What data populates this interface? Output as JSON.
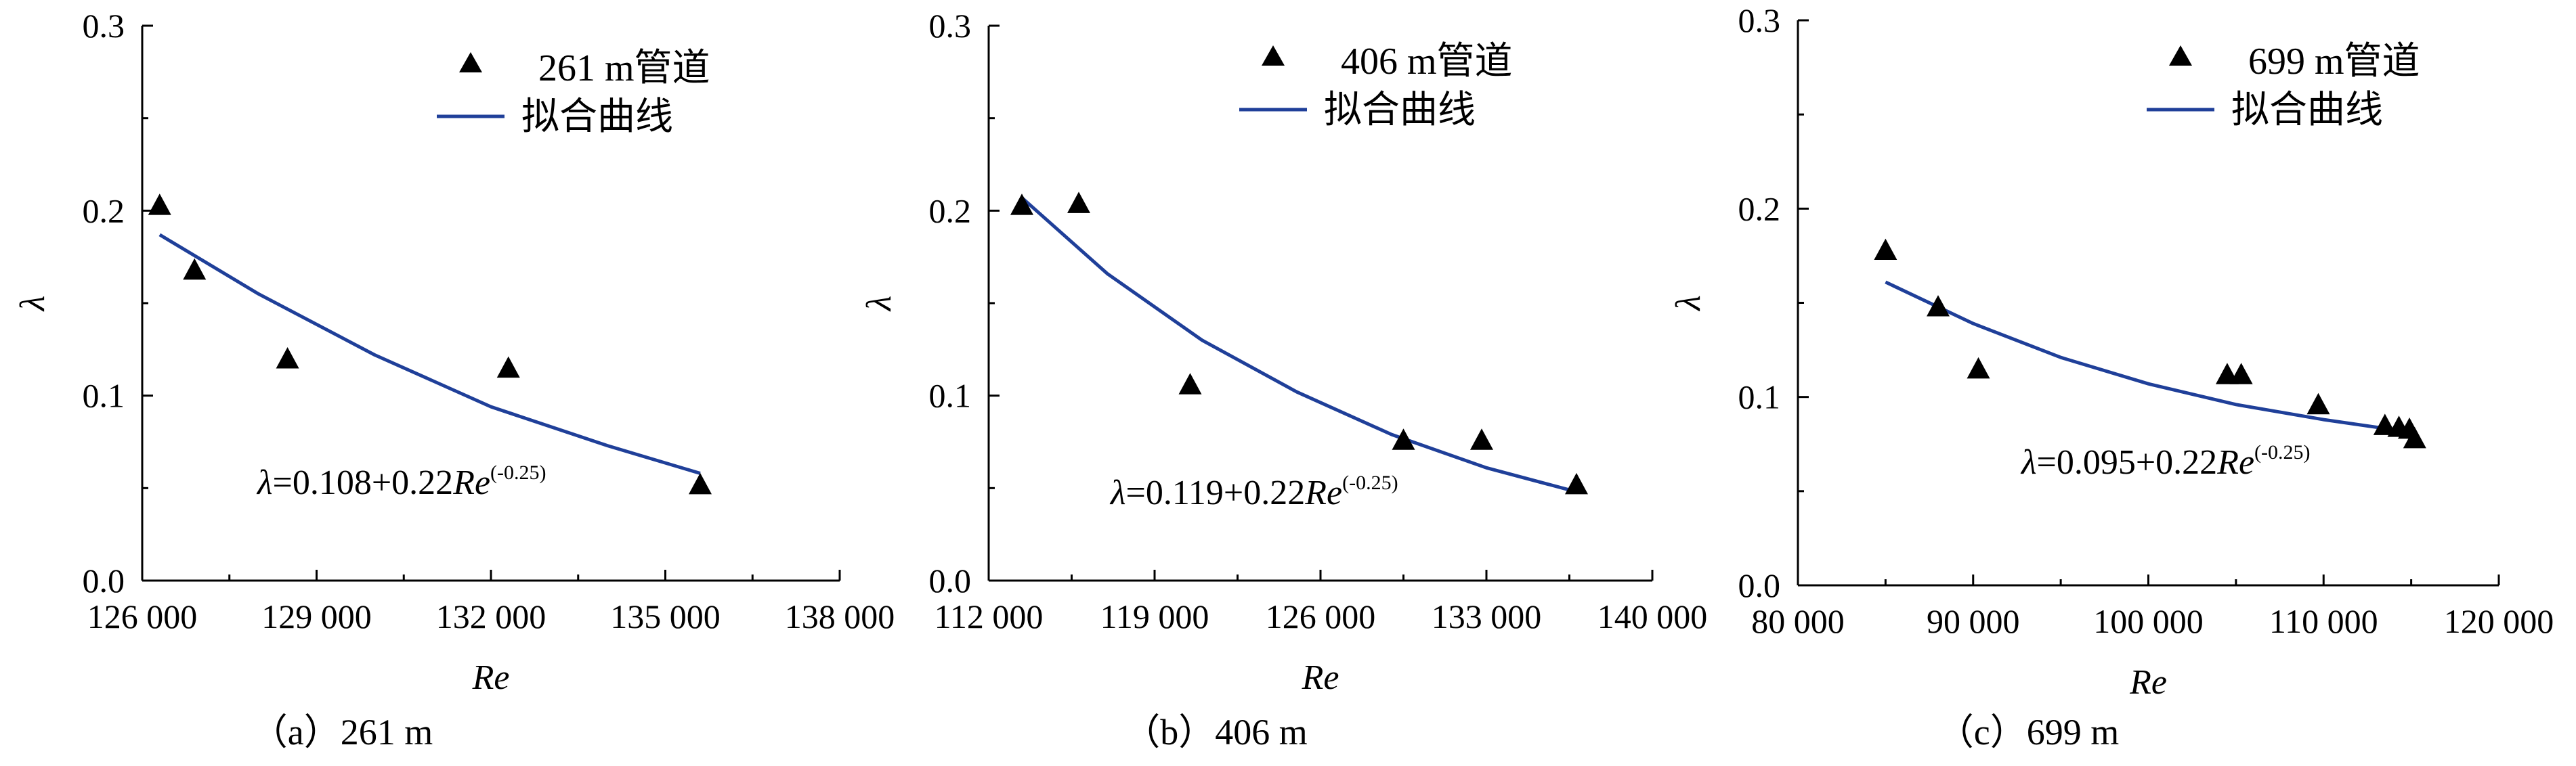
{
  "chart_data": [
    {
      "type": "scatter",
      "caption": "（a）261 m",
      "xlabel": "Re",
      "ylabel": "λ",
      "xlim": [
        126000,
        138000
      ],
      "ylim": [
        0.0,
        0.3
      ],
      "xticks": [
        "126 000",
        "129 000",
        "132 000",
        "135 000",
        "138 000"
      ],
      "yticks": [
        "0.0",
        "0.1",
        "0.2",
        "0.3"
      ],
      "equation": {
        "lhs": "λ",
        "rhs": "=0.108+0.22",
        "re": "Re",
        "sup": "(-0.25)"
      },
      "legend": {
        "marker_label": "261 m管道",
        "line_label": "拟合曲线",
        "position": "top-right"
      },
      "series": [
        {
          "kind": "points",
          "x": [
            126300,
            126900,
            128500,
            132300,
            135600
          ],
          "y": [
            0.203,
            0.168,
            0.12,
            0.115,
            0.052
          ]
        },
        {
          "kind": "fit",
          "x": [
            126300,
            128000,
            130000,
            132000,
            134000,
            135600
          ],
          "y": [
            0.187,
            0.155,
            0.122,
            0.094,
            0.073,
            0.058
          ]
        }
      ]
    },
    {
      "type": "scatter",
      "caption": "（b）406 m",
      "xlabel": "Re",
      "ylabel": "λ",
      "xlim": [
        112000,
        140000
      ],
      "ylim": [
        0.0,
        0.3
      ],
      "xticks": [
        "112 000",
        "119 000",
        "126 000",
        "133 000",
        "140 000"
      ],
      "yticks": [
        "0.0",
        "0.1",
        "0.2",
        "0.3"
      ],
      "equation": {
        "lhs": "λ",
        "rhs": "=0.119+0.22",
        "re": "Re",
        "sup": "(-0.25)"
      },
      "legend": {
        "marker_label": "406 m管道",
        "line_label": "拟合曲线",
        "position": "top-right"
      },
      "series": [
        {
          "kind": "points",
          "x": [
            113400,
            115800,
            120500,
            129500,
            132800,
            136800
          ],
          "y": [
            0.203,
            0.204,
            0.106,
            0.076,
            0.076,
            0.052
          ]
        },
        {
          "kind": "fit",
          "x": [
            113400,
            117000,
            121000,
            125000,
            129000,
            133000,
            136800
          ],
          "y": [
            0.207,
            0.166,
            0.13,
            0.102,
            0.079,
            0.061,
            0.048
          ]
        }
      ]
    },
    {
      "type": "scatter",
      "caption": "（c）699 m",
      "xlabel": "Re",
      "ylabel": "λ",
      "xlim": [
        80000,
        120000
      ],
      "ylim": [
        0.0,
        0.3
      ],
      "xticks": [
        "80 000",
        "90 000",
        "100 000",
        "110 000",
        "120 000"
      ],
      "yticks": [
        "0.0",
        "0.1",
        "0.2",
        "0.3"
      ],
      "equation": {
        "lhs": "λ",
        "rhs": "=0.095+0.22",
        "re": "Re",
        "sup": "(-0.25)"
      },
      "legend": {
        "marker_label": "699 m管道",
        "line_label": "拟合曲线",
        "position": "top-right"
      },
      "series": [
        {
          "kind": "points",
          "x": [
            85000,
            88000,
            90300,
            104500,
            105300,
            109700,
            113500,
            114300,
            114900,
            115200
          ],
          "y": [
            0.178,
            0.148,
            0.115,
            0.112,
            0.112,
            0.096,
            0.085,
            0.084,
            0.083,
            0.078
          ]
        },
        {
          "kind": "fit",
          "x": [
            85000,
            90000,
            95000,
            100000,
            105000,
            110000,
            115200
          ],
          "y": [
            0.161,
            0.139,
            0.121,
            0.107,
            0.096,
            0.088,
            0.081
          ]
        }
      ]
    }
  ],
  "colors": {
    "fit_line": "#1f3f99",
    "marker": "#000000",
    "axis": "#000000"
  }
}
